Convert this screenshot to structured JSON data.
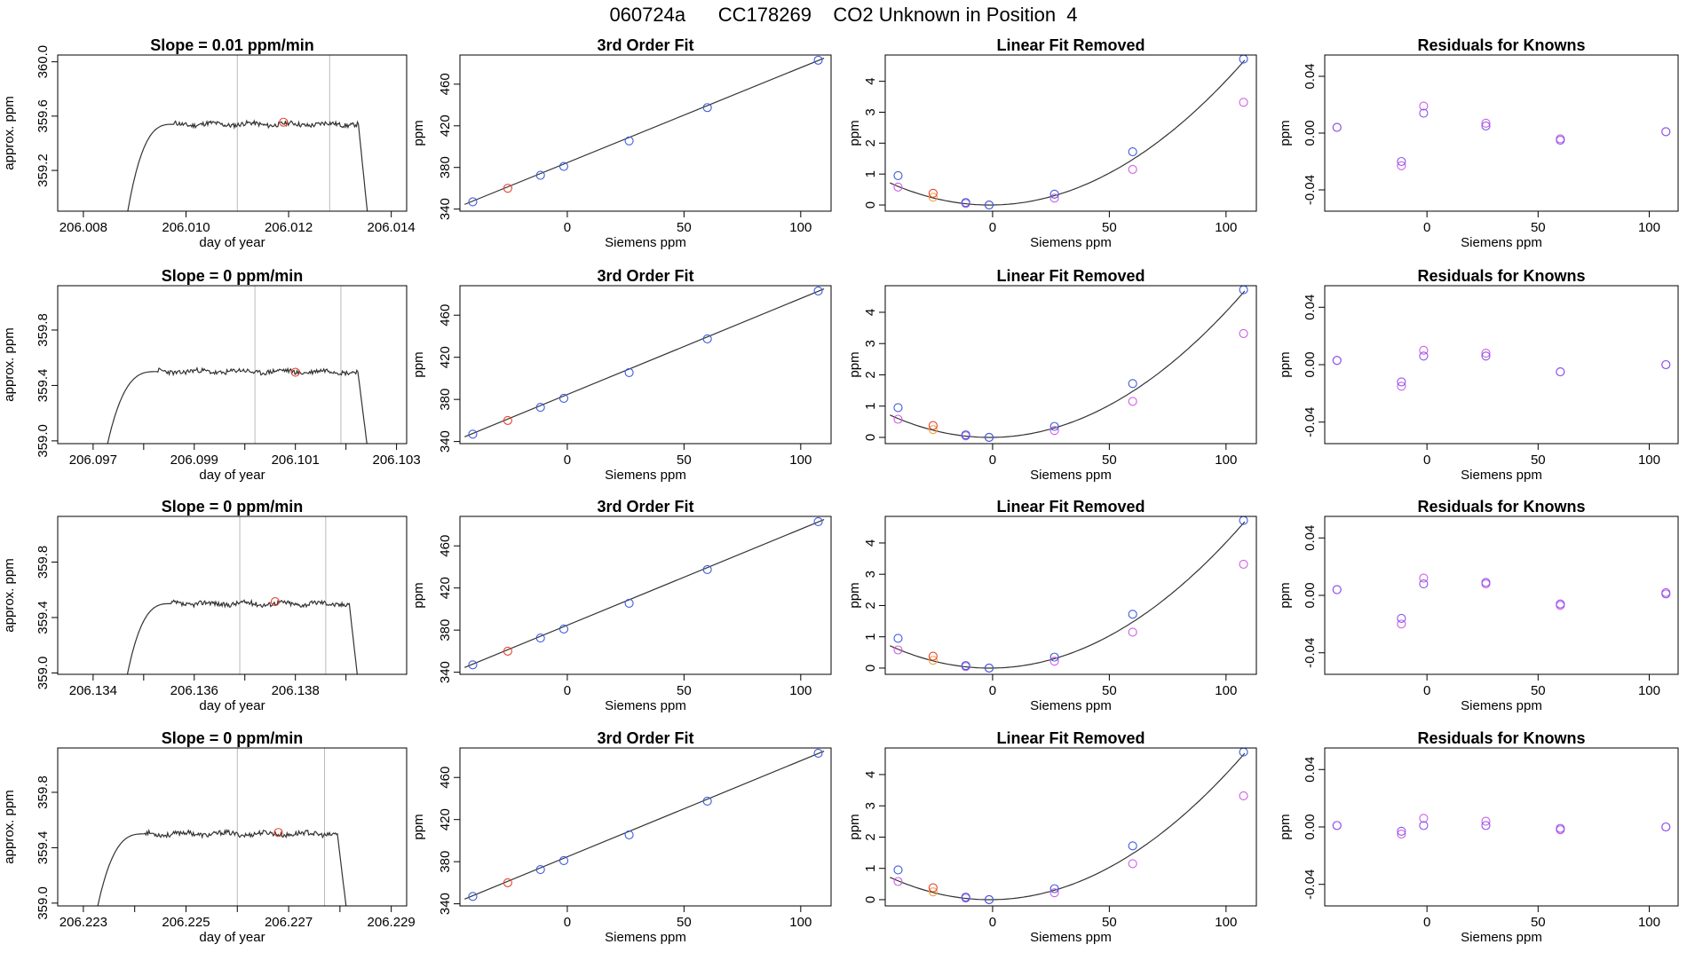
{
  "title": "060724a      CC178269    CO2 Unknown in Position  4",
  "colors": {
    "blue": "#3b5bdb",
    "red": "#e8432d",
    "orange": "#f4a340",
    "magenta": "#d05ce3",
    "purple": "#8855ee",
    "gray": "#b9b9b9",
    "line": "#333333"
  },
  "rows": [
    {
      "trace": {
        "title": "Slope =  0.01  ppm/min",
        "xlabel": "day of year",
        "ylabel": "approx. ppm",
        "xlim": [
          206.0075,
          206.0143
        ],
        "ylim": [
          358.9,
          360.05
        ],
        "xticks": [
          206.008,
          206.01,
          206.012,
          206.014
        ],
        "xticklabels": [
          "206.008",
          "206.010",
          "206.012",
          "206.014"
        ],
        "yticks": [
          359.2,
          359.6,
          360.0
        ],
        "yticklabels": [
          "359.2",
          "359.6",
          "360.0"
        ],
        "vlines": [
          206.011,
          206.0128
        ],
        "x_start": 206.0088,
        "x_end": 206.0136,
        "plateau": 359.54,
        "marker": {
          "x": 206.0119,
          "y": 359.555
        },
        "seed": 11
      }
    },
    {
      "trace": {
        "title": "Slope =  0  ppm/min",
        "xlabel": "day of year",
        "ylabel": "approx. ppm",
        "xlim": [
          206.0963,
          206.1032
        ],
        "ylim": [
          358.98,
          360.12
        ],
        "xticks": [
          206.097,
          206.098,
          206.099,
          206.1,
          206.101,
          206.102,
          206.103
        ],
        "xticklabels": [
          "206.097",
          "",
          "206.099",
          "",
          "206.101",
          "",
          "206.103"
        ],
        "yticks": [
          359.0,
          359.4,
          359.8
        ],
        "yticklabels": [
          "359.0",
          "359.4",
          "359.8"
        ],
        "vlines": [
          206.1002,
          206.1019
        ],
        "x_start": 206.0972,
        "x_end": 206.1025,
        "plateau": 359.5,
        "marker": {
          "x": 206.101,
          "y": 359.495
        },
        "seed": 23
      }
    },
    {
      "trace": {
        "title": "Slope =  0  ppm/min",
        "xlabel": "day of year",
        "ylabel": "approx. ppm",
        "xlim": [
          206.1333,
          206.1402
        ],
        "ylim": [
          358.99,
          360.13
        ],
        "xticks": [
          206.134,
          206.135,
          206.136,
          206.137,
          206.138,
          206.139
        ],
        "xticklabels": [
          "206.134",
          "",
          "206.136",
          "",
          "206.138",
          ""
        ],
        "yticks": [
          359.0,
          359.4,
          359.8
        ],
        "yticklabels": [
          "359.0",
          "359.4",
          "359.8"
        ],
        "vlines": [
          206.1369,
          206.1386
        ],
        "x_start": 206.1346,
        "x_end": 206.1393,
        "plateau": 359.5,
        "marker": {
          "x": 206.1376,
          "y": 359.515
        },
        "seed": 37
      }
    },
    {
      "trace": {
        "title": "Slope =  0  ppm/min",
        "xlabel": "day of year",
        "ylabel": "approx. ppm",
        "xlim": [
          206.2225,
          206.2293
        ],
        "ylim": [
          358.98,
          360.12
        ],
        "xticks": [
          206.223,
          206.224,
          206.225,
          206.226,
          206.227,
          206.228,
          206.229
        ],
        "xticklabels": [
          "206.223",
          "",
          "206.225",
          "",
          "206.227",
          "",
          "206.229"
        ],
        "yticks": [
          359.0,
          359.4,
          359.8
        ],
        "yticklabels": [
          "359.0",
          "359.4",
          "359.8"
        ],
        "vlines": [
          206.226,
          206.2277
        ],
        "x_start": 206.2232,
        "x_end": 206.2282,
        "plateau": 359.5,
        "marker": {
          "x": 206.2268,
          "y": 359.51
        },
        "seed": 53
      }
    }
  ],
  "fit": {
    "title": "3rd Order Fit",
    "xlabel": "Siemens ppm",
    "ylabel": "ppm",
    "xlim": [
      -46,
      113
    ],
    "ylim": [
      338,
      488
    ],
    "xticks": [
      0,
      50,
      100
    ],
    "yticks": [
      340,
      380,
      420,
      460
    ],
    "knowns": [
      {
        "x": -40.5,
        "y": 347.0
      },
      {
        "x": -11.5,
        "y": 372.5
      },
      {
        "x": -1.5,
        "y": 381.0
      },
      {
        "x": 26.5,
        "y": 405.5
      },
      {
        "x": 60.0,
        "y": 437.5
      },
      {
        "x": 107.5,
        "y": 483.0
      }
    ],
    "unknown": {
      "x": -25.5,
      "y": 360.0
    },
    "line": [
      [
        -44,
        344.5
      ],
      [
        110,
        485
      ]
    ]
  },
  "linear_removed": {
    "title": "Linear Fit Removed",
    "xlabel": "Siemens ppm",
    "ylabel": "ppm",
    "xlim": [
      -46,
      113
    ],
    "ylim": [
      -0.2,
      4.85
    ],
    "xticks": [
      0,
      50,
      100
    ],
    "yticks": [
      0,
      1,
      2,
      3,
      4
    ],
    "knowns_blue": [
      {
        "x": -40.5,
        "y": 0.95
      },
      {
        "x": -11.5,
        "y": 0.08
      },
      {
        "x": -1.5,
        "y": 0.0
      },
      {
        "x": 26.5,
        "y": 0.35
      },
      {
        "x": 60.0,
        "y": 1.72
      },
      {
        "x": 107.5,
        "y": 4.72
      }
    ],
    "knowns_magenta": [
      {
        "x": -40.5,
        "y": 0.58
      },
      {
        "x": -11.5,
        "y": 0.05
      },
      {
        "x": -1.5,
        "y": 0.0
      },
      {
        "x": 26.5,
        "y": 0.22
      },
      {
        "x": 60.0,
        "y": 1.15
      },
      {
        "x": 107.5,
        "y": 3.32
      }
    ],
    "unknown_orange": {
      "x": -25.5,
      "y": 0.38
    },
    "unknown_orange2": {
      "x": -25.5,
      "y": 0.25
    },
    "curve_coeffs": {
      "a": 0.000392,
      "b": 0.001,
      "c": 0.0
    }
  },
  "residuals": {
    "title": "Residuals for Knowns",
    "xlabel": "Siemens ppm",
    "ylabel": "ppm",
    "xlim": [
      -46,
      113
    ],
    "ylim": [
      -0.055,
      0.055
    ],
    "xticks": [
      0,
      50,
      100
    ],
    "yticks": [
      -0.04,
      0.0,
      0.04
    ],
    "yticklabels": [
      "-0.04",
      "0.00",
      "0.04"
    ],
    "rows": [
      {
        "blue": [
          0.004,
          -0.02,
          0.014,
          0.005,
          -0.005,
          0.001
        ],
        "magenta": [
          0.004,
          -0.023,
          0.019,
          0.007,
          -0.004,
          0.001
        ]
      },
      {
        "blue": [
          0.003,
          -0.012,
          0.006,
          0.006,
          -0.005,
          0.0
        ],
        "magenta": [
          0.003,
          -0.015,
          0.01,
          0.008,
          -0.005,
          0.0
        ]
      },
      {
        "blue": [
          0.004,
          -0.016,
          0.008,
          0.009,
          -0.006,
          0.001
        ],
        "magenta": [
          0.004,
          -0.02,
          0.012,
          0.008,
          -0.007,
          0.002
        ]
      },
      {
        "blue": [
          0.001,
          -0.003,
          0.001,
          0.001,
          -0.001,
          0.0
        ],
        "magenta": [
          0.001,
          -0.005,
          0.006,
          0.004,
          -0.002,
          0.0
        ]
      }
    ],
    "x": [
      -40.5,
      -11.5,
      -1.5,
      26.5,
      60.0,
      107.5
    ]
  }
}
